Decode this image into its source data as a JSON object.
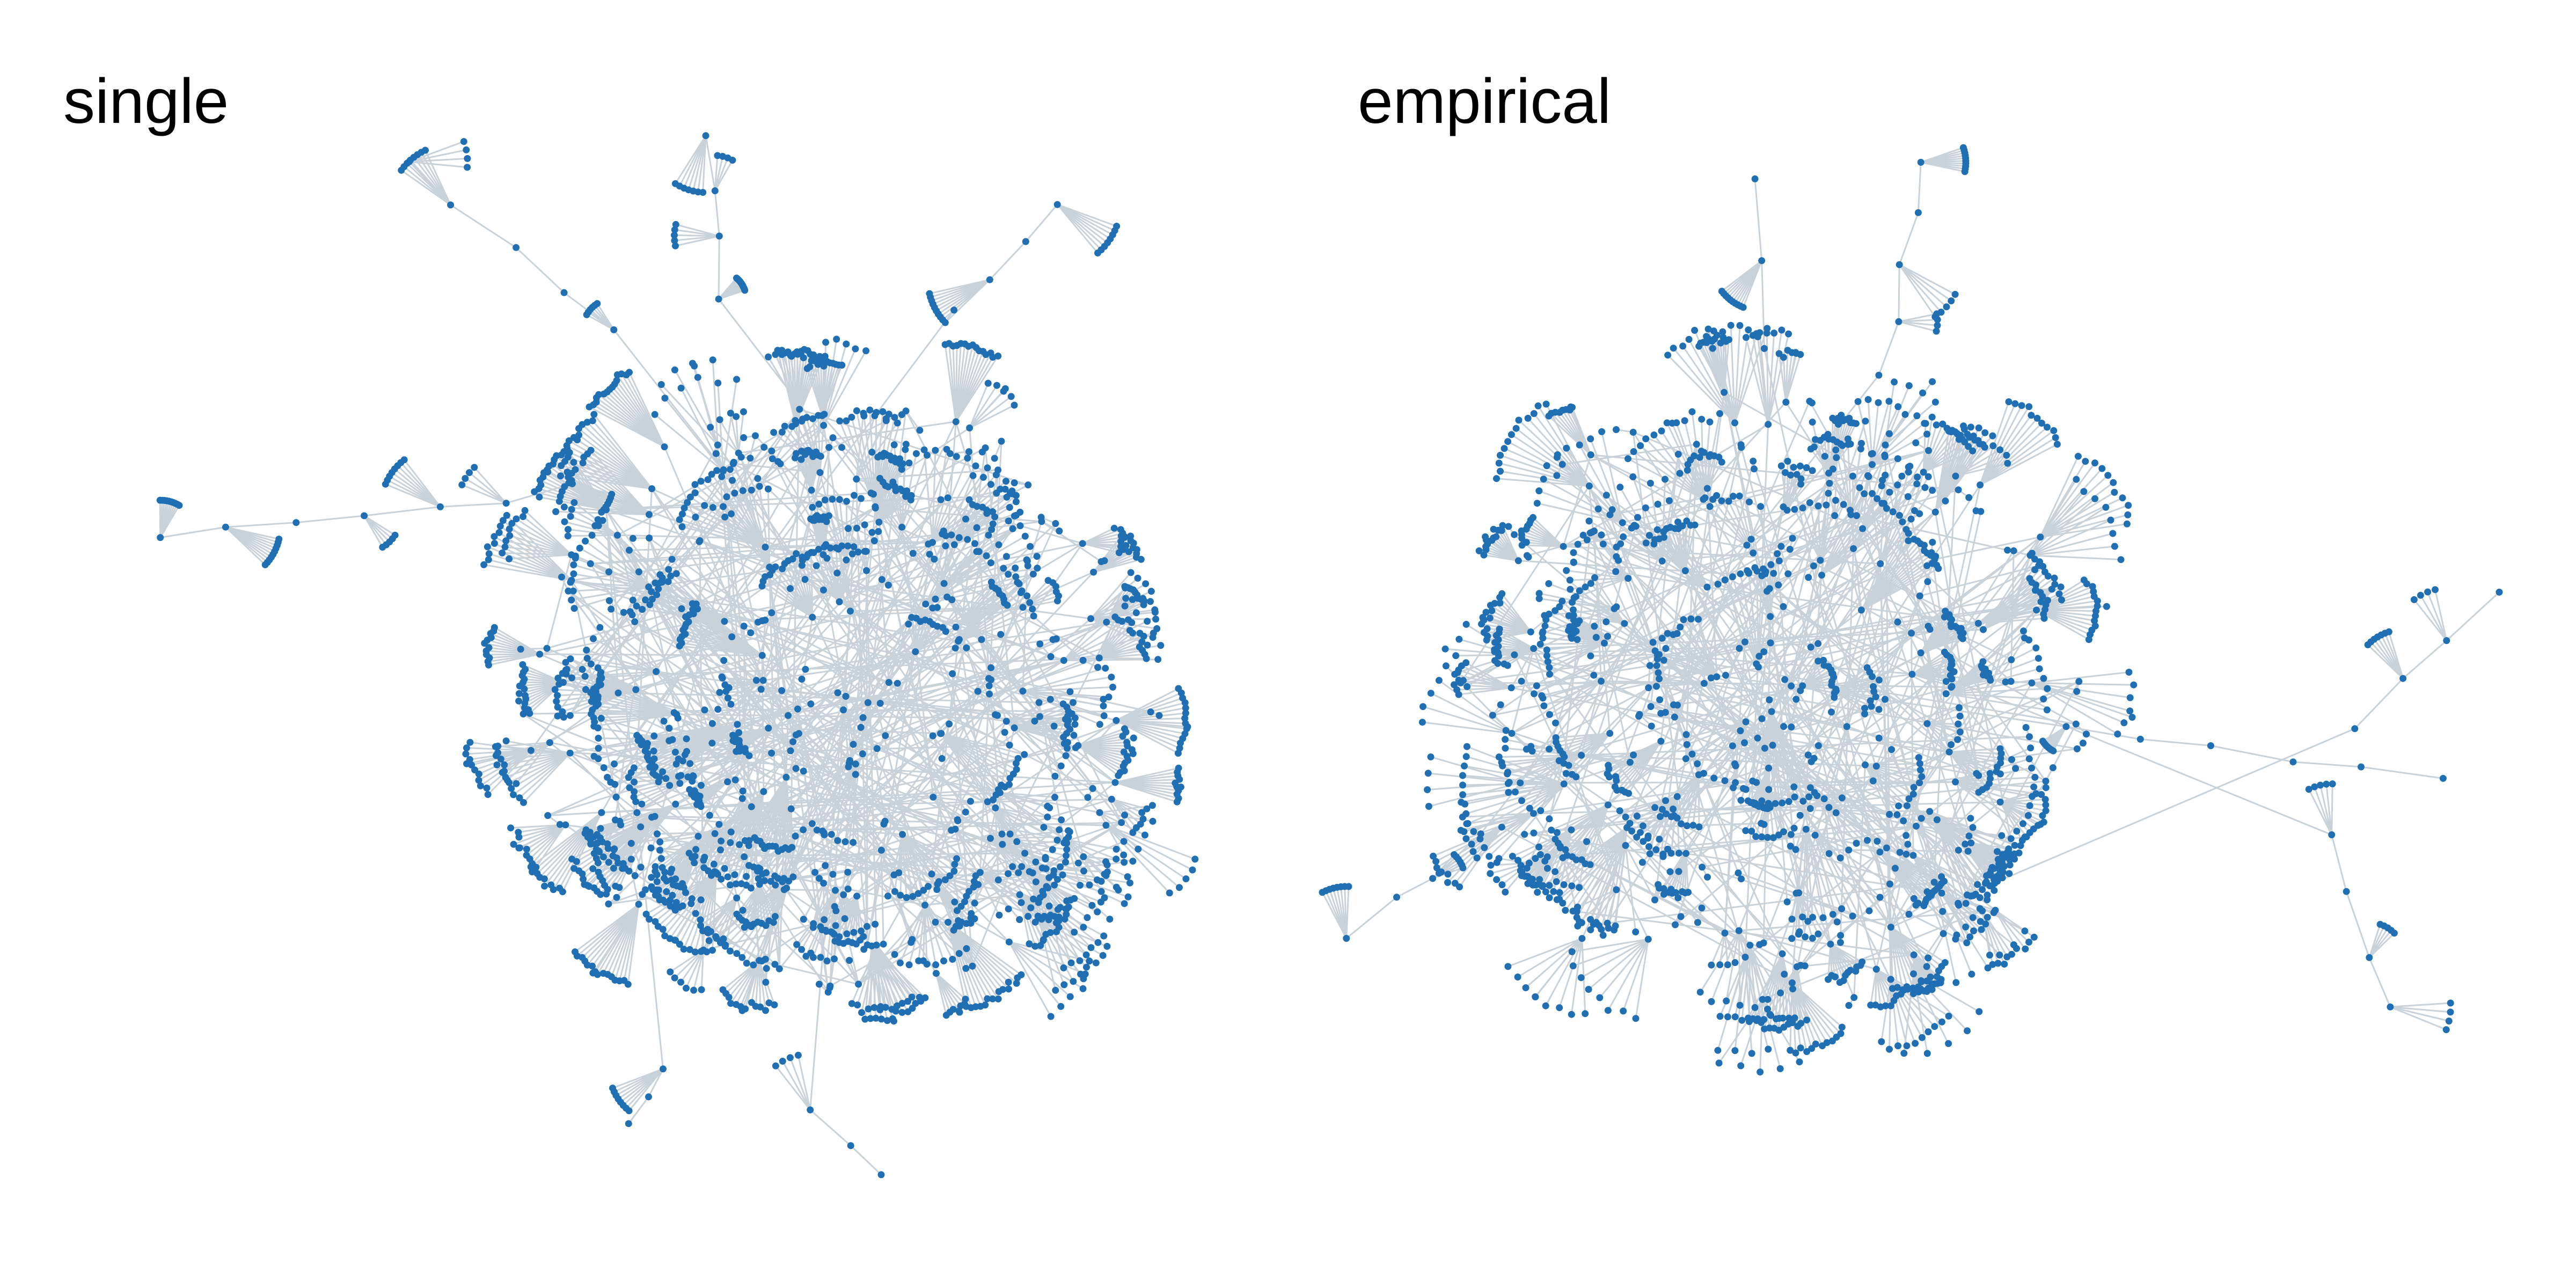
{
  "panels": [
    {
      "id": "single",
      "title": "single"
    },
    {
      "id": "empirical",
      "title": "empirical"
    }
  ],
  "colors": {
    "node": "#1f6fb2",
    "edge": "#c9d1d9",
    "background": "#ffffff"
  }
}
